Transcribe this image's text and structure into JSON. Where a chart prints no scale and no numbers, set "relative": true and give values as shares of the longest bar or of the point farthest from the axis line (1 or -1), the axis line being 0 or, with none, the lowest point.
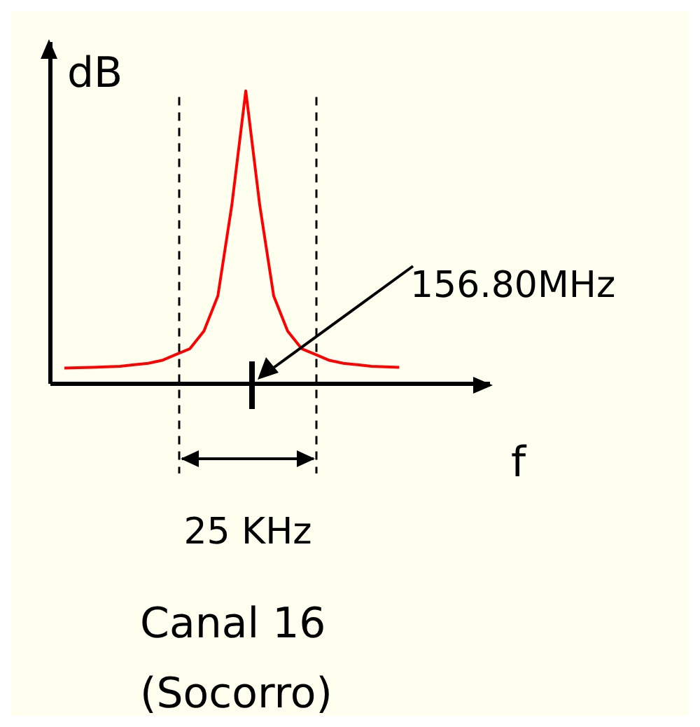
{
  "chart_data": {
    "type": "line",
    "relative": true,
    "xlabel": "f",
    "ylabel": "dB",
    "categories": [
      null,
      null,
      null,
      null,
      null,
      null,
      null,
      null,
      null,
      null,
      null,
      null,
      null,
      null,
      null,
      null,
      null,
      null,
      null,
      null,
      null,
      null,
      null,
      null,
      null
    ],
    "series": [
      {
        "color": "#ff0000",
        "values": [
          0.054,
          0.055,
          0.056,
          0.058,
          0.06,
          0.065,
          0.07,
          0.08,
          0.1,
          0.12,
          0.18,
          0.3,
          0.61,
          1,
          0.61,
          0.3,
          0.18,
          0.12,
          0.1,
          0.08,
          0.07,
          0.065,
          0.06,
          0.058,
          0.056
        ]
      }
    ],
    "annotations": [
      "156.80MHz",
      "25 KHz",
      "Canal 16 (Socorro)"
    ],
    "marker": "none",
    "line_style": "solid"
  }
}
